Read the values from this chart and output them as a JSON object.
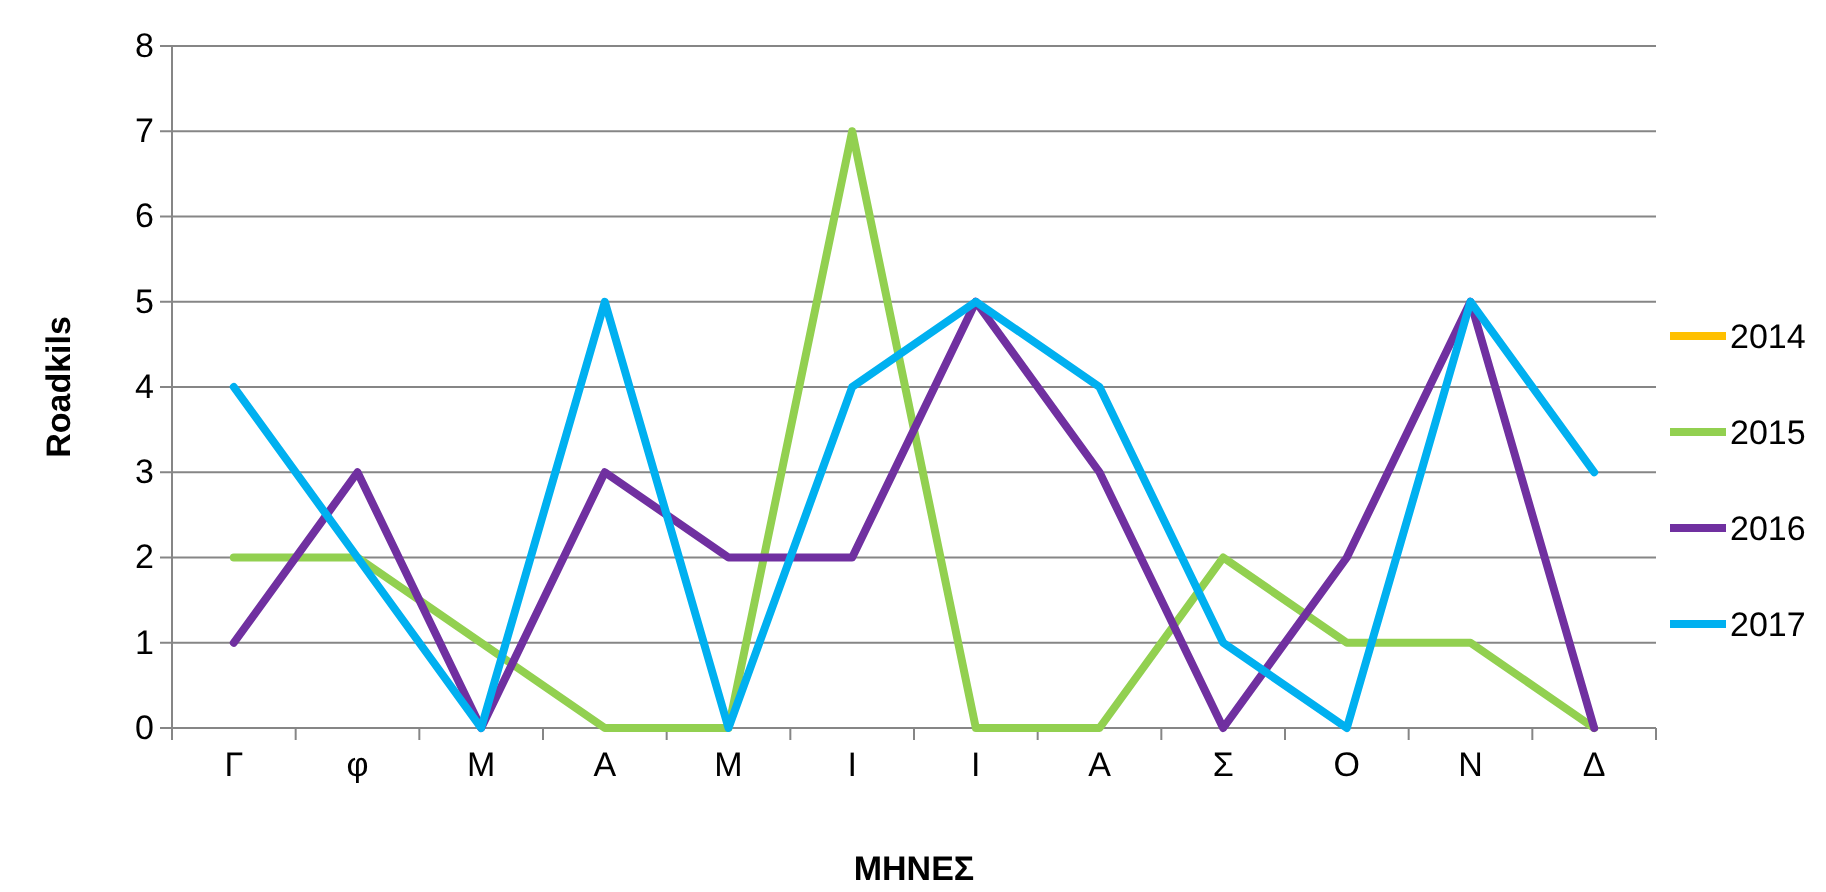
{
  "chart_data": {
    "type": "line",
    "xlabel": "ΜΗΝΕΣ",
    "ylabel": "Roadkils",
    "categories": [
      "Γ",
      "φ",
      "Μ",
      "Α",
      "Μ",
      "Ι",
      "Ι",
      "Α",
      "Σ",
      "Ο",
      "Ν",
      "Δ"
    ],
    "series": [
      {
        "name": "2014",
        "color": "#ffc000",
        "values": [
          null,
          null,
          null,
          null,
          null,
          null,
          null,
          null,
          null,
          null,
          null,
          null
        ]
      },
      {
        "name": "2015",
        "color": "#92d050",
        "values": [
          2,
          2,
          1,
          0,
          0,
          7,
          0,
          0,
          2,
          1,
          1,
          0
        ]
      },
      {
        "name": "2016",
        "color": "#7030a0",
        "values": [
          1,
          3,
          0,
          3,
          2,
          2,
          5,
          3,
          0,
          2,
          5,
          0
        ]
      },
      {
        "name": "2017",
        "color": "#00b0f0",
        "values": [
          4,
          2,
          0,
          5,
          0,
          4,
          5,
          4,
          1,
          0,
          5,
          3
        ]
      }
    ],
    "ylim": [
      0,
      8
    ],
    "yticks": [
      0,
      1,
      2,
      3,
      4,
      5,
      6,
      7,
      8
    ],
    "grid": "y",
    "legend": "right",
    "marker": "none",
    "line_style": "solid"
  }
}
